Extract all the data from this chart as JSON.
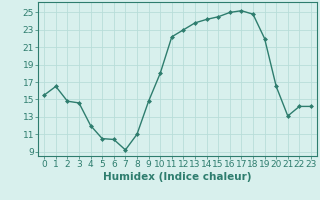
{
  "x": [
    0,
    1,
    2,
    3,
    4,
    5,
    6,
    7,
    8,
    9,
    10,
    11,
    12,
    13,
    14,
    15,
    16,
    17,
    18,
    19,
    20,
    21,
    22,
    23
  ],
  "y": [
    15.5,
    16.5,
    14.8,
    14.6,
    12.0,
    10.5,
    10.4,
    9.2,
    11.0,
    14.8,
    18.0,
    22.2,
    23.0,
    23.8,
    24.2,
    24.5,
    25.0,
    25.2,
    24.8,
    22.0,
    16.5,
    13.1,
    14.2,
    14.2
  ],
  "xlabel": "Humidex (Indice chaleur)",
  "xlim": [
    -0.5,
    23.5
  ],
  "ylim": [
    8.5,
    26.2
  ],
  "yticks": [
    9,
    11,
    13,
    15,
    17,
    19,
    21,
    23,
    25
  ],
  "xticks": [
    0,
    1,
    2,
    3,
    4,
    5,
    6,
    7,
    8,
    9,
    10,
    11,
    12,
    13,
    14,
    15,
    16,
    17,
    18,
    19,
    20,
    21,
    22,
    23
  ],
  "line_color": "#2e7d6e",
  "marker": "D",
  "markersize": 2.0,
  "linewidth": 1.0,
  "bg_color": "#d8f0ed",
  "grid_color": "#b8ddd9",
  "tick_color": "#2e7d6e",
  "label_color": "#2e7d6e",
  "font_size": 6.5,
  "xlabel_fontsize": 7.5
}
